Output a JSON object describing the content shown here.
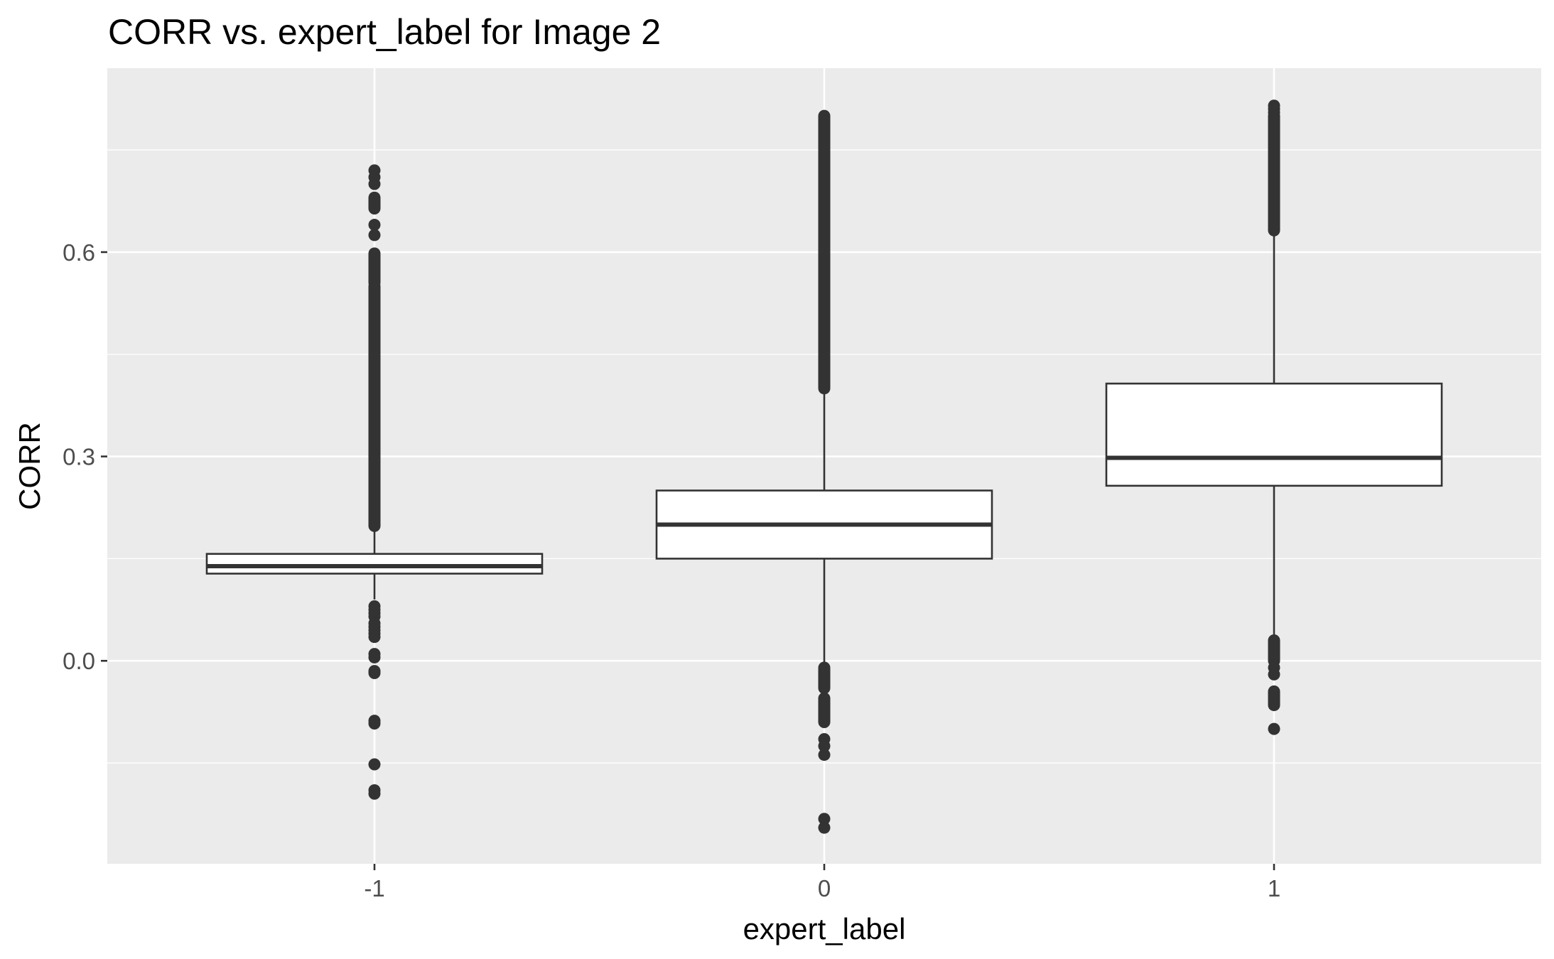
{
  "chart_data": {
    "type": "boxplot",
    "title": "CORR vs. expert_label for Image 2",
    "xlabel": "expert_label",
    "ylabel": "CORR",
    "categories": [
      "-1",
      "0",
      "1"
    ],
    "ylim": [
      -0.298,
      0.87
    ],
    "yticks": [
      {
        "value": 0.0,
        "label": "0.0"
      },
      {
        "value": 0.3,
        "label": "0.3"
      },
      {
        "value": 0.6,
        "label": "0.6"
      }
    ],
    "y_minor_ticks": [
      -0.15,
      0.15,
      0.45,
      0.75
    ],
    "grid": true,
    "legend": "none",
    "colors": {
      "panel": "#ebebeb",
      "grid": "#ffffff",
      "box_fill": "#ffffff",
      "box_stroke": "#333333",
      "outlier": "#333333"
    },
    "boxes": [
      {
        "category": "-1",
        "q1": 0.128,
        "median": 0.139,
        "q3": 0.157,
        "whisker_low": 0.09,
        "whisker_high": 0.198,
        "outlier_ranges": [
          [
            0.198,
            0.55
          ],
          [
            0.555,
            0.598
          ],
          [
            0.664,
            0.68
          ]
        ],
        "outliers": [
          0.72,
          0.71,
          0.7,
          0.675,
          0.668,
          0.64,
          0.625,
          0.08,
          0.075,
          0.07,
          0.065,
          0.055,
          0.05,
          0.045,
          0.04,
          0.035,
          0.01,
          0.005,
          -0.015,
          -0.018,
          -0.088,
          -0.092,
          -0.152,
          -0.19,
          -0.195
        ]
      },
      {
        "category": "0",
        "q1": 0.15,
        "median": 0.2,
        "q3": 0.25,
        "whisker_low": -0.003,
        "whisker_high": 0.4,
        "outlier_ranges": [
          [
            0.4,
            0.8
          ],
          [
            -0.01,
            -0.04
          ],
          [
            -0.055,
            -0.09
          ]
        ],
        "outliers": [
          -0.115,
          -0.125,
          -0.138,
          -0.232,
          -0.245
        ]
      },
      {
        "category": "1",
        "q1": 0.257,
        "median": 0.298,
        "q3": 0.407,
        "whisker_low": 0.035,
        "whisker_high": 0.632,
        "outlier_ranges": [
          [
            0.632,
            0.8
          ],
          [
            0.0,
            0.03
          ],
          [
            -0.045,
            -0.065
          ]
        ],
        "outliers": [
          0.815,
          0.81,
          0.805,
          -0.01,
          -0.02,
          -0.1
        ]
      }
    ]
  }
}
